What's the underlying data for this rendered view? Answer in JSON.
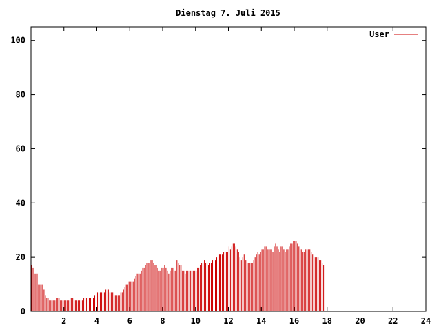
{
  "chart_data": {
    "type": "bar",
    "title": "Dienstag 7. Juli 2015",
    "xlim": [
      0,
      24
    ],
    "ylim": [
      0,
      105
    ],
    "x_ticks": [
      "2",
      "4",
      "6",
      "8",
      "10",
      "12",
      "14",
      "16",
      "18",
      "20",
      "22",
      "24"
    ],
    "y_ticks": [
      "0",
      "20",
      "40",
      "60",
      "80",
      "100"
    ],
    "grid": false,
    "legend_position": "top-right",
    "series": [
      {
        "name": "User",
        "color": "#cc0000",
        "x_start": 0,
        "x_step": 0.0833,
        "values": [
          17,
          16,
          14,
          14,
          14,
          10,
          10,
          10,
          10,
          8,
          6,
          5,
          5,
          4,
          4,
          4,
          4,
          4,
          5,
          5,
          5,
          4,
          4,
          4,
          4,
          4,
          4,
          4,
          5,
          5,
          5,
          4,
          4,
          4,
          4,
          4,
          4,
          4,
          5,
          5,
          5,
          5,
          5,
          5,
          4,
          5,
          6,
          6,
          7,
          7,
          7,
          7,
          7,
          7,
          8,
          8,
          8,
          7,
          7,
          7,
          7,
          6,
          6,
          6,
          6,
          7,
          7,
          8,
          9,
          10,
          10,
          11,
          11,
          11,
          11,
          12,
          13,
          14,
          14,
          14,
          15,
          16,
          16,
          17,
          18,
          18,
          18,
          19,
          19,
          18,
          17,
          17,
          16,
          15,
          15,
          16,
          16,
          17,
          16,
          15,
          14,
          15,
          16,
          16,
          15,
          15,
          19,
          18,
          17,
          17,
          15,
          15,
          14,
          15,
          15,
          15,
          15,
          15,
          15,
          15,
          15,
          16,
          16,
          17,
          18,
          18,
          19,
          18,
          18,
          17,
          18,
          18,
          19,
          19,
          19,
          20,
          20,
          21,
          21,
          21,
          22,
          22,
          22,
          22,
          24,
          23,
          24,
          25,
          25,
          24,
          23,
          22,
          20,
          19,
          20,
          21,
          19,
          19,
          18,
          18,
          18,
          18,
          19,
          20,
          21,
          22,
          21,
          22,
          23,
          23,
          24,
          24,
          23,
          23,
          23,
          23,
          22,
          24,
          25,
          24,
          23,
          22,
          24,
          24,
          23,
          22,
          23,
          23,
          24,
          25,
          25,
          26,
          26,
          26,
          25,
          24,
          23,
          23,
          22,
          22,
          23,
          23,
          23,
          23,
          22,
          21,
          20,
          20,
          20,
          20,
          19,
          19,
          18,
          17
        ]
      }
    ]
  }
}
